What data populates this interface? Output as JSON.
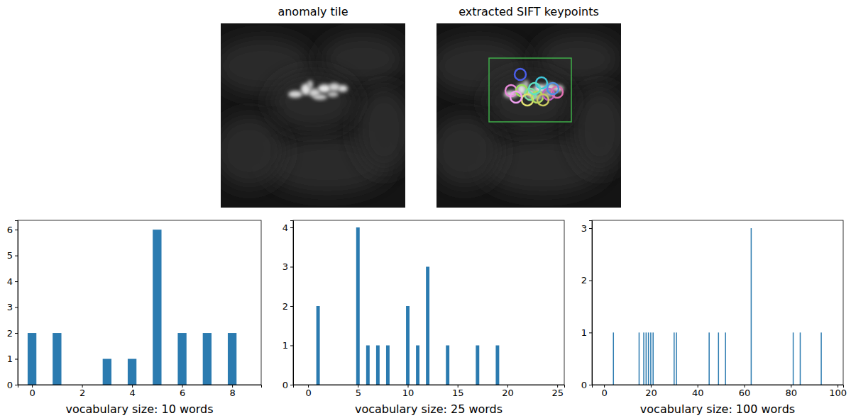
{
  "panels": [
    {
      "title": "anomaly tile"
    },
    {
      "title": "extracted SIFT keypoints"
    }
  ],
  "chart_data": [
    {
      "type": "bar",
      "x_label": "vocabulary size: 10 words",
      "x": [
        0,
        1,
        3,
        4,
        5,
        6,
        7,
        8
      ],
      "values": [
        2,
        2,
        1,
        1,
        6,
        2,
        2,
        2
      ],
      "color": "#2b7bb0",
      "xlim": [
        -0.57,
        9.16
      ],
      "xticks": [
        0,
        2,
        4,
        6,
        8
      ],
      "ylim": [
        0,
        6.36
      ],
      "yticks": [
        0,
        1,
        2,
        3,
        4,
        5,
        6
      ]
    },
    {
      "type": "bar",
      "x_label": "vocabulary size: 25 words",
      "x": [
        1,
        5,
        6,
        7,
        8,
        10,
        11,
        12,
        14,
        17,
        19
      ],
      "values": [
        2,
        4,
        1,
        1,
        1,
        2,
        1,
        3,
        1,
        1,
        1
      ],
      "color": "#2b7bb0",
      "xlim": [
        -1.5,
        25.7
      ],
      "xticks": [
        0,
        5,
        10,
        15,
        20,
        25
      ],
      "ylim": [
        0,
        4.18
      ],
      "yticks": [
        0,
        1,
        2,
        3,
        4
      ]
    },
    {
      "type": "bar",
      "x_label": "vocabulary size: 100 words",
      "x": [
        4,
        15,
        17,
        18,
        19,
        20,
        21,
        30,
        31,
        45,
        49,
        52,
        63,
        81,
        84,
        93
      ],
      "values": [
        1,
        1,
        1,
        1,
        1,
        1,
        1,
        1,
        1,
        1,
        1,
        1,
        3,
        1,
        1,
        1
      ],
      "color": "#2b7bb0",
      "xlim": [
        -5.2,
        102.4
      ],
      "xticks": [
        0,
        20,
        40,
        60,
        80,
        100
      ],
      "ylim": [
        0,
        3.15
      ],
      "yticks": [
        0,
        1,
        2,
        3
      ]
    }
  ]
}
